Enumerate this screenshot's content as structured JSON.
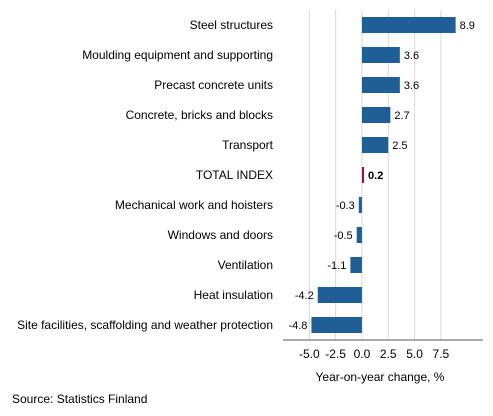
{
  "chart_data": {
    "type": "bar",
    "orientation": "horizontal",
    "categories": [
      "Steel structures",
      "Moulding equipment and supporting",
      "Precast concrete units",
      "Concrete, bricks and blocks",
      "Transport",
      "TOTAL INDEX",
      "Mechanical work and hoisters",
      "Windows and doors",
      "Ventilation",
      "Heat insulation",
      "Site facilities, scaffolding and weather protection"
    ],
    "values": [
      8.9,
      3.6,
      3.6,
      2.7,
      2.5,
      0.2,
      -0.3,
      -0.5,
      -1.1,
      -4.2,
      -4.8
    ],
    "value_labels": [
      "8.9",
      "3.6",
      "3.6",
      "2.7",
      "2.5",
      "0.2",
      "-0.3",
      "-0.5",
      "-1.1",
      "-4.2",
      "-4.8"
    ],
    "highlight_category": "TOTAL INDEX",
    "xlabel": "Year-on-year change, %",
    "xlim": [
      -7.5,
      11.5
    ],
    "xticks": [
      -5.0,
      -2.5,
      0.0,
      2.5,
      5.0,
      7.5
    ],
    "xtick_labels": [
      "-5.0",
      "-2.5",
      "0.0",
      "2.5",
      "5.0",
      "7.5"
    ],
    "grid": "vertical",
    "legend": "none",
    "colors": {
      "bar": "#1f5f96",
      "highlight": "#9b0f40",
      "grid": "#d8d8d8",
      "axis": "#555555"
    }
  },
  "source": "Source: Statistics Finland"
}
